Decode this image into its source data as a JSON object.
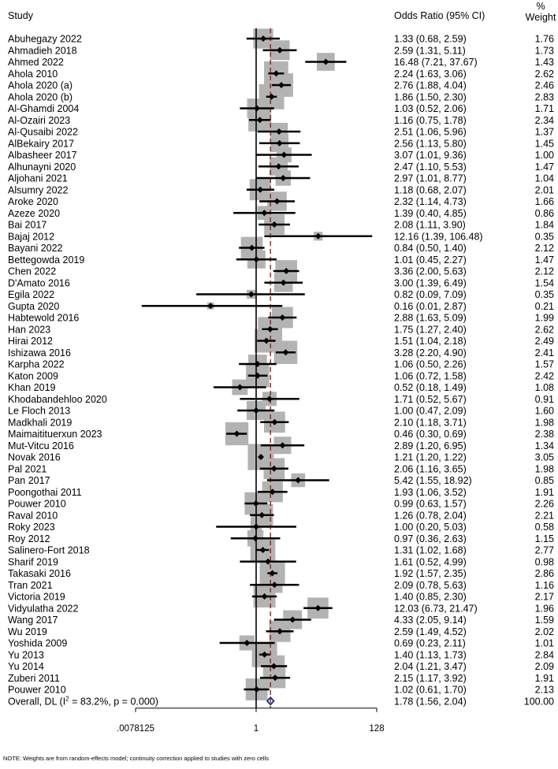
{
  "chart_data": {
    "type": "forest",
    "headers": {
      "study": "Study",
      "ci": "Odds Ratio (95% CI)",
      "weight_top": "%",
      "weight_bottom": "Weight"
    },
    "x_scale": "log2",
    "xlim": [
      0.0078125,
      128
    ],
    "xticks": [
      {
        "value": 0.0078125,
        "label": ".0078125"
      },
      {
        "value": 1,
        "label": "1"
      },
      {
        "value": 128,
        "label": "128"
      }
    ],
    "null_line": 1,
    "pooled_line": 1.78,
    "studies": [
      {
        "name": "Abuhegazy 2022",
        "or": 1.33,
        "lo": 0.68,
        "hi": 2.59,
        "ci": "1.33 (0.68, 2.59)",
        "weight": 1.76,
        "weight_label": "1.76"
      },
      {
        "name": "Ahmadieh 2018",
        "or": 2.59,
        "lo": 1.31,
        "hi": 5.11,
        "ci": "2.59 (1.31, 5.11)",
        "weight": 1.73,
        "weight_label": "1.73"
      },
      {
        "name": "Ahmed 2022",
        "or": 16.48,
        "lo": 7.21,
        "hi": 37.67,
        "ci": "16.48 (7.21, 37.67)",
        "weight": 1.43,
        "weight_label": "1.43"
      },
      {
        "name": "Ahola 2010",
        "or": 2.24,
        "lo": 1.63,
        "hi": 3.06,
        "ci": "2.24 (1.63, 3.06)",
        "weight": 2.62,
        "weight_label": "2.62"
      },
      {
        "name": "Ahola 2020 (a)",
        "or": 2.76,
        "lo": 1.88,
        "hi": 4.04,
        "ci": "2.76 (1.88, 4.04)",
        "weight": 2.46,
        "weight_label": "2.46"
      },
      {
        "name": "Ahola 2020 (b)",
        "or": 1.86,
        "lo": 1.5,
        "hi": 2.3,
        "ci": "1.86 (1.50, 2.30)",
        "weight": 2.83,
        "weight_label": "2.83"
      },
      {
        "name": "Al-Ghamdi 2004",
        "or": 1.03,
        "lo": 0.52,
        "hi": 2.06,
        "ci": "1.03 (0.52, 2.06)",
        "weight": 1.71,
        "weight_label": "1.71"
      },
      {
        "name": "Al-Ozairi 2023",
        "or": 1.16,
        "lo": 0.75,
        "hi": 1.78,
        "ci": "1.16 (0.75, 1.78)",
        "weight": 2.34,
        "weight_label": "2.34"
      },
      {
        "name": "Al-Qusaibi 2022",
        "or": 2.51,
        "lo": 1.06,
        "hi": 5.96,
        "ci": "2.51 (1.06, 5.96)",
        "weight": 1.37,
        "weight_label": "1.37"
      },
      {
        "name": "AlBekairy 2017",
        "or": 2.56,
        "lo": 1.13,
        "hi": 5.8,
        "ci": "2.56 (1.13, 5.80)",
        "weight": 1.45,
        "weight_label": "1.45"
      },
      {
        "name": "Albasheer 2017",
        "or": 3.07,
        "lo": 1.01,
        "hi": 9.36,
        "ci": "3.07 (1.01, 9.36)",
        "weight": 1.0,
        "weight_label": "1.00"
      },
      {
        "name": "Alhunayni 2020",
        "or": 2.47,
        "lo": 1.1,
        "hi": 5.53,
        "ci": "2.47 (1.10, 5.53)",
        "weight": 1.47,
        "weight_label": "1.47"
      },
      {
        "name": "Aljohani 2021",
        "or": 2.97,
        "lo": 1.01,
        "hi": 8.77,
        "ci": "2.97 (1.01, 8.77)",
        "weight": 1.04,
        "weight_label": "1.04"
      },
      {
        "name": "Alsumry 2022",
        "or": 1.18,
        "lo": 0.68,
        "hi": 2.07,
        "ci": "1.18 (0.68, 2.07)",
        "weight": 2.01,
        "weight_label": "2.01"
      },
      {
        "name": "Aroke 2020",
        "or": 2.32,
        "lo": 1.14,
        "hi": 4.73,
        "ci": "2.32 (1.14, 4.73)",
        "weight": 1.66,
        "weight_label": "1.66"
      },
      {
        "name": "Azeze 2020",
        "or": 1.39,
        "lo": 0.4,
        "hi": 4.85,
        "ci": "1.39 (0.40, 4.85)",
        "weight": 0.86,
        "weight_label": "0.86"
      },
      {
        "name": "Bai 2017",
        "or": 2.08,
        "lo": 1.11,
        "hi": 3.9,
        "ci": "2.08 (1.11, 3.90)",
        "weight": 1.84,
        "weight_label": "1.84"
      },
      {
        "name": "Bajaj 2012",
        "or": 12.16,
        "lo": 1.39,
        "hi": 106.48,
        "ci": "12.16 (1.39, 106.48)",
        "weight": 0.35,
        "weight_label": "0.35"
      },
      {
        "name": "Bayani 2022",
        "or": 0.84,
        "lo": 0.5,
        "hi": 1.4,
        "ci": "0.84 (0.50, 1.40)",
        "weight": 2.12,
        "weight_label": "2.12"
      },
      {
        "name": "Bettegowda 2019",
        "or": 1.01,
        "lo": 0.45,
        "hi": 2.27,
        "ci": "1.01 (0.45, 2.27)",
        "weight": 1.47,
        "weight_label": "1.47"
      },
      {
        "name": "Chen 2022",
        "or": 3.36,
        "lo": 2.0,
        "hi": 5.63,
        "ci": "3.36 (2.00, 5.63)",
        "weight": 2.12,
        "weight_label": "2.12"
      },
      {
        "name": "D'Amato 2016",
        "or": 3.0,
        "lo": 1.39,
        "hi": 6.49,
        "ci": "3.00 (1.39, 6.49)",
        "weight": 1.54,
        "weight_label": "1.54"
      },
      {
        "name": "Egila 2022",
        "or": 0.82,
        "lo": 0.09,
        "hi": 7.09,
        "ci": "0.82 (0.09, 7.09)",
        "weight": 0.35,
        "weight_label": "0.35"
      },
      {
        "name": "Gupta 2020",
        "or": 0.16,
        "lo": 0.01,
        "hi": 2.87,
        "ci": "0.16 (0.01, 2.87)",
        "weight": 0.21,
        "weight_label": "0.21"
      },
      {
        "name": "Habtewold 2016",
        "or": 2.88,
        "lo": 1.63,
        "hi": 5.09,
        "ci": "2.88 (1.63, 5.09)",
        "weight": 1.99,
        "weight_label": "1.99"
      },
      {
        "name": "Han 2023",
        "or": 1.75,
        "lo": 1.27,
        "hi": 2.4,
        "ci": "1.75 (1.27, 2.40)",
        "weight": 2.62,
        "weight_label": "2.62"
      },
      {
        "name": "Hirai 2012",
        "or": 1.51,
        "lo": 1.04,
        "hi": 2.18,
        "ci": "1.51 (1.04, 2.18)",
        "weight": 2.49,
        "weight_label": "2.49"
      },
      {
        "name": "Ishizawa 2016",
        "or": 3.28,
        "lo": 2.2,
        "hi": 4.9,
        "ci": "3.28 (2.20, 4.90)",
        "weight": 2.41,
        "weight_label": "2.41"
      },
      {
        "name": "Karpha 2022",
        "or": 1.06,
        "lo": 0.5,
        "hi": 2.26,
        "ci": "1.06 (0.50, 2.26)",
        "weight": 1.57,
        "weight_label": "1.57"
      },
      {
        "name": "Katon 2009",
        "or": 1.06,
        "lo": 0.72,
        "hi": 1.58,
        "ci": "1.06 (0.72, 1.58)",
        "weight": 2.42,
        "weight_label": "2.42"
      },
      {
        "name": "Khan 2019",
        "or": 0.52,
        "lo": 0.18,
        "hi": 1.49,
        "ci": "0.52 (0.18, 1.49)",
        "weight": 1.08,
        "weight_label": "1.08"
      },
      {
        "name": "Khodabandehloo 2020",
        "or": 1.71,
        "lo": 0.52,
        "hi": 5.67,
        "ci": "1.71 (0.52, 5.67)",
        "weight": 0.91,
        "weight_label": "0.91"
      },
      {
        "name": "Le Floch 2013",
        "or": 1.0,
        "lo": 0.47,
        "hi": 2.09,
        "ci": "1.00 (0.47, 2.09)",
        "weight": 1.6,
        "weight_label": "1.60"
      },
      {
        "name": "Madkhali 2019",
        "or": 2.1,
        "lo": 1.18,
        "hi": 3.71,
        "ci": "2.10 (1.18, 3.71)",
        "weight": 1.98,
        "weight_label": "1.98"
      },
      {
        "name": "Maimaitituerxun 2023",
        "or": 0.46,
        "lo": 0.3,
        "hi": 0.69,
        "ci": "0.46 (0.30, 0.69)",
        "weight": 2.38,
        "weight_label": "2.38"
      },
      {
        "name": "Mut-Vitcu 2016",
        "or": 2.89,
        "lo": 1.2,
        "hi": 6.95,
        "ci": "2.89 (1.20, 6.95)",
        "weight": 1.34,
        "weight_label": "1.34"
      },
      {
        "name": "Novak 2016",
        "or": 1.21,
        "lo": 1.2,
        "hi": 1.22,
        "ci": "1.21 (1.20, 1.22)",
        "weight": 3.05,
        "weight_label": "3.05"
      },
      {
        "name": "Pal 2021",
        "or": 2.06,
        "lo": 1.16,
        "hi": 3.65,
        "ci": "2.06 (1.16, 3.65)",
        "weight": 1.98,
        "weight_label": "1.98"
      },
      {
        "name": "Pan 2017",
        "or": 5.42,
        "lo": 1.55,
        "hi": 18.92,
        "ci": "5.42 (1.55, 18.92)",
        "weight": 0.85,
        "weight_label": "0.85"
      },
      {
        "name": "Poongothai 2011",
        "or": 1.93,
        "lo": 1.06,
        "hi": 3.52,
        "ci": "1.93 (1.06, 3.52)",
        "weight": 1.91,
        "weight_label": "1.91"
      },
      {
        "name": "Pouwer 2010",
        "or": 0.99,
        "lo": 0.63,
        "hi": 1.57,
        "ci": "0.99 (0.63, 1.57)",
        "weight": 2.26,
        "weight_label": "2.26"
      },
      {
        "name": "Raval 2010",
        "or": 1.26,
        "lo": 0.78,
        "hi": 2.04,
        "ci": "1.26 (0.78, 2.04)",
        "weight": 2.21,
        "weight_label": "2.21"
      },
      {
        "name": "Roky 2023",
        "or": 1.0,
        "lo": 0.2,
        "hi": 5.03,
        "ci": "1.00 (0.20, 5.03)",
        "weight": 0.58,
        "weight_label": "0.58"
      },
      {
        "name": "Roy 2012",
        "or": 0.97,
        "lo": 0.36,
        "hi": 2.63,
        "ci": "0.97 (0.36, 2.63)",
        "weight": 1.15,
        "weight_label": "1.15"
      },
      {
        "name": "Salinero-Fort 2018",
        "or": 1.31,
        "lo": 1.02,
        "hi": 1.68,
        "ci": "1.31 (1.02, 1.68)",
        "weight": 2.77,
        "weight_label": "2.77"
      },
      {
        "name": "Sharif 2019",
        "or": 1.61,
        "lo": 0.52,
        "hi": 4.99,
        "ci": "1.61 (0.52, 4.99)",
        "weight": 0.98,
        "weight_label": "0.98"
      },
      {
        "name": "Takasaki 2016",
        "or": 1.92,
        "lo": 1.57,
        "hi": 2.35,
        "ci": "1.92 (1.57, 2.35)",
        "weight": 2.86,
        "weight_label": "2.86"
      },
      {
        "name": "Tran 2021",
        "or": 2.09,
        "lo": 0.78,
        "hi": 5.63,
        "ci": "2.09 (0.78, 5.63)",
        "weight": 1.16,
        "weight_label": "1.16"
      },
      {
        "name": "Victoria 2019",
        "or": 1.4,
        "lo": 0.85,
        "hi": 2.3,
        "ci": "1.40 (0.85, 2.30)",
        "weight": 2.17,
        "weight_label": "2.17"
      },
      {
        "name": "Vidyulatha 2022",
        "or": 12.03,
        "lo": 6.73,
        "hi": 21.47,
        "ci": "12.03 (6.73, 21.47)",
        "weight": 1.96,
        "weight_label": "1.96"
      },
      {
        "name": "Wang 2017",
        "or": 4.33,
        "lo": 2.05,
        "hi": 9.14,
        "ci": "4.33 (2.05, 9.14)",
        "weight": 1.59,
        "weight_label": "1.59"
      },
      {
        "name": "Wu 2019",
        "or": 2.59,
        "lo": 1.49,
        "hi": 4.52,
        "ci": "2.59 (1.49, 4.52)",
        "weight": 2.02,
        "weight_label": "2.02"
      },
      {
        "name": "Yoshida 2009",
        "or": 0.69,
        "lo": 0.23,
        "hi": 2.11,
        "ci": "0.69 (0.23, 2.11)",
        "weight": 1.01,
        "weight_label": "1.01"
      },
      {
        "name": "Yu 2013",
        "or": 1.4,
        "lo": 1.13,
        "hi": 1.73,
        "ci": "1.40 (1.13, 1.73)",
        "weight": 2.84,
        "weight_label": "2.84"
      },
      {
        "name": "Yu 2014",
        "or": 2.04,
        "lo": 1.21,
        "hi": 3.47,
        "ci": "2.04 (1.21, 3.47)",
        "weight": 2.09,
        "weight_label": "2.09"
      },
      {
        "name": "Zuberi 2011",
        "or": 2.15,
        "lo": 1.17,
        "hi": 3.92,
        "ci": "2.15 (1.17, 3.92)",
        "weight": 1.91,
        "weight_label": "1.91"
      },
      {
        "name": "Pouwer 2010",
        "or": 1.02,
        "lo": 0.61,
        "hi": 1.7,
        "ci": "1.02 (0.61, 1.70)",
        "weight": 2.13,
        "weight_label": "2.13"
      }
    ],
    "overall": {
      "label_prefix": "Overall, DL (I",
      "label_sup": "2",
      "label_suffix": " = 83.2%, p = 0.000)",
      "or": 1.78,
      "lo": 1.56,
      "hi": 2.04,
      "ci": "1.78 (1.56, 2.04)",
      "weight_label": "100.00"
    },
    "colors": {
      "box": "#b3b3b3",
      "line": "#000000",
      "pooled_line": "#9b1c1c",
      "diamond": "#1f2a8a"
    }
  },
  "footnote": "NOTE: Weights are from random-effects model; continuity correction applied to studies with zero cells"
}
